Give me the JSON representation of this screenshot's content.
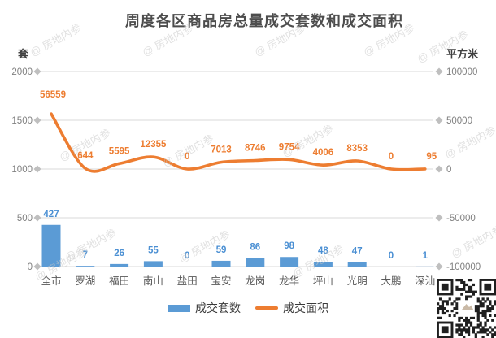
{
  "title": "周度各区商品房总量成交套数和成交面积",
  "watermark_text": "@ 房地内参",
  "axes": {
    "left_unit": "套",
    "right_unit": "平方米",
    "left_ticks": [
      "2000",
      "1500",
      "1000",
      "500",
      "0"
    ],
    "right_ticks": [
      "100000",
      "50000",
      "0",
      "-50000",
      "-100000"
    ]
  },
  "legend": {
    "bar_label": "成交套数",
    "line_label": "成交面积"
  },
  "colors": {
    "bar": "#5B9BD5",
    "bar_label": "#4A8FD3",
    "line": "#ED7D31",
    "line_label": "#ED7D31",
    "grid": "#D9D9D9",
    "diamond": "#BFBFBF",
    "tick_label": "#808080",
    "category_label": "#595959",
    "title": "#4D4D4D",
    "axis_unit": "#404040",
    "legend_text": "#3A3A3A",
    "watermark": "#C9C9C9",
    "qr_dark": "#1F1F1F"
  },
  "chart_data": {
    "type": "bar+line combo",
    "title": "周度各区商品房总量成交套数和成交面积",
    "categories": [
      "全市",
      "罗湖",
      "福田",
      "南山",
      "盐田",
      "宝安",
      "龙岗",
      "龙华",
      "坪山",
      "光明",
      "大鹏",
      "深汕"
    ],
    "series": [
      {
        "name": "成交套数",
        "type": "bar",
        "axis": "left",
        "values": [
          427,
          7,
          26,
          55,
          0,
          59,
          86,
          98,
          48,
          47,
          0,
          1
        ]
      },
      {
        "name": "成交面积",
        "type": "line",
        "axis": "right",
        "values": [
          56559,
          644,
          5595,
          12355,
          0,
          7013,
          8746,
          9754,
          4006,
          8353,
          0,
          95
        ]
      }
    ],
    "left_axis": {
      "label": "套",
      "min": 0,
      "max": 2000,
      "step": 500
    },
    "right_axis": {
      "label": "平方米",
      "min": -100000,
      "max": 100000,
      "step": 50000
    },
    "grid": true,
    "data_labels": true,
    "legend_position": "bottom"
  }
}
